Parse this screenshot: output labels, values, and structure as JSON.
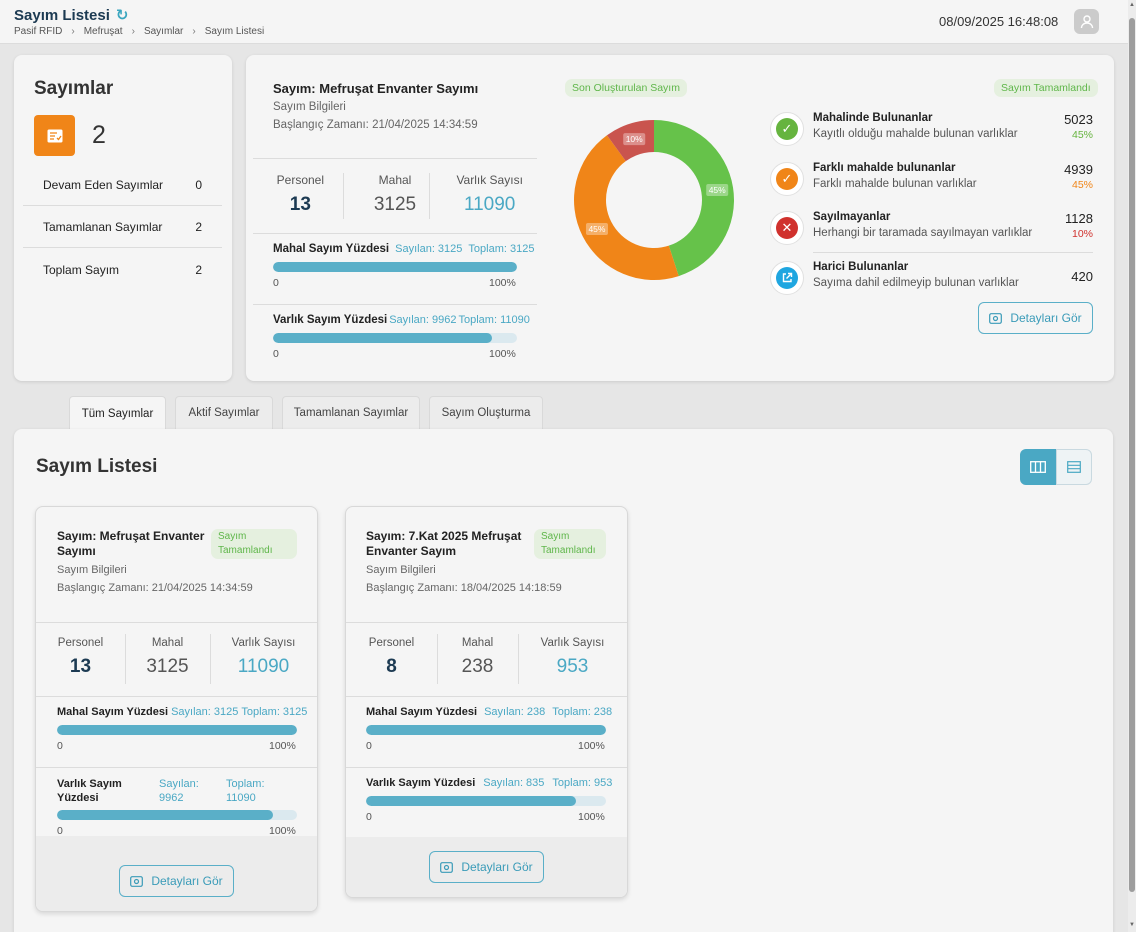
{
  "header": {
    "title": "Sayım Listesi",
    "breadcrumb": [
      "Pasif RFID",
      "Mefruşat",
      "Sayımlar",
      "Sayım Listesi"
    ],
    "datetime": "08/09/2025 16:48:08"
  },
  "summary": {
    "title": "Sayımlar",
    "total": "2",
    "rows": [
      {
        "label": "Devam Eden Sayımlar",
        "value": "0"
      },
      {
        "label": "Tamamlanan Sayımlar",
        "value": "2"
      },
      {
        "label": "Toplam Sayım",
        "value": "2"
      }
    ]
  },
  "latest": {
    "title": "Sayım: Mefruşat Envanter Sayımı",
    "info_label": "Sayım Bilgileri",
    "start": "Başlangıç Zamanı: 21/04/2025 14:34:59",
    "tag_latest": "Son Oluşturulan Sayım",
    "tag_status": "Sayım Tamamlandı",
    "stats": [
      {
        "label": "Personel",
        "value": "13"
      },
      {
        "label": "Mahal",
        "value": "3125"
      },
      {
        "label": "Varlık Sayısı",
        "value": "11090"
      }
    ],
    "mahal_pct": {
      "label": "Mahal Sayım Yüzdesi",
      "counted": "Sayılan: 3125",
      "total": "Toplam: 3125",
      "min": "0",
      "max": "100%",
      "fraction": 1.0
    },
    "varlik_pct": {
      "label": "Varlık Sayım Yüzdesi",
      "counted": "Sayılan: 9962",
      "total": "Toplam: 11090",
      "min": "0",
      "max": "100%",
      "fraction": 0.898
    },
    "donut": {
      "segments": [
        {
          "label": "45%",
          "value": 45,
          "color": "#66c24a"
        },
        {
          "label": "45%",
          "value": 45,
          "color": "#f08518"
        },
        {
          "label": "10%",
          "value": 10,
          "color": "#c9544e"
        }
      ]
    },
    "legend": [
      {
        "title": "Mahalinde Bulunanlar",
        "desc": "Kayıtlı olduğu mahalde bulunan varlıklar",
        "value": "5023",
        "pct": "45%",
        "color": "#66b43f",
        "icon": "check-icon"
      },
      {
        "title": "Farklı mahalde bulunanlar",
        "desc": "Farklı mahalde bulunan varlıklar",
        "value": "4939",
        "pct": "45%",
        "color": "#f08518",
        "icon": "check-icon"
      },
      {
        "title": "Sayılmayanlar",
        "desc": "Herhangi bir taramada sayılmayan varlıklar",
        "value": "1128",
        "pct": "10%",
        "color": "#d0312d",
        "icon": "close-icon"
      },
      {
        "title": "Harici Bulunanlar",
        "desc": "Sayıma dahil edilmeyip bulunan varlıklar",
        "value": "420",
        "pct": "",
        "color": "#1fa6e0",
        "icon": "external-link-icon"
      }
    ],
    "details_btn": "Detayları Gör"
  },
  "tabs": [
    "Tüm Sayımlar",
    "Aktif Sayımlar",
    "Tamamlanan Sayımlar",
    "Sayım Oluşturma"
  ],
  "list": {
    "title": "Sayım Listesi",
    "cards": [
      {
        "title": "Sayım: Mefruşat Envanter Sayımı",
        "status": "Sayım Tamamlandı",
        "info_label": "Sayım Bilgileri",
        "start": "Başlangıç Zamanı: 21/04/2025 14:34:59",
        "stats": [
          {
            "label": "Personel",
            "value": "13"
          },
          {
            "label": "Mahal",
            "value": "3125"
          },
          {
            "label": "Varlık Sayısı",
            "value": "11090"
          }
        ],
        "mahal_pct": {
          "label": "Mahal Sayım Yüzdesi",
          "counted": "Sayılan: 3125",
          "total": "Toplam: 3125",
          "min": "0",
          "max": "100%",
          "fraction": 1.0
        },
        "varlik_pct": {
          "label": "Varlık Sayım Yüzdesi",
          "counted": "Sayılan: 9962",
          "total": "Toplam: 11090",
          "min": "0",
          "max": "100%",
          "fraction": 0.898
        },
        "details_btn": "Detayları Gör"
      },
      {
        "title": "Sayım: 7.Kat 2025 Mefruşat Envanter Sayım",
        "status": "Sayım Tamamlandı",
        "info_label": "Sayım Bilgileri",
        "start": "Başlangıç Zamanı: 18/04/2025 14:18:59",
        "stats": [
          {
            "label": "Personel",
            "value": "8"
          },
          {
            "label": "Mahal",
            "value": "238"
          },
          {
            "label": "Varlık Sayısı",
            "value": "953"
          }
        ],
        "mahal_pct": {
          "label": "Mahal Sayım Yüzdesi",
          "counted": "Sayılan: 238",
          "total": "Toplam: 238",
          "min": "0",
          "max": "100%",
          "fraction": 1.0
        },
        "varlik_pct": {
          "label": "Varlık Sayım Yüzdesi",
          "counted": "Sayılan: 835",
          "total": "Toplam: 953",
          "min": "0",
          "max": "100%",
          "fraction": 0.876
        },
        "details_btn": "Detayları Gör"
      }
    ]
  }
}
